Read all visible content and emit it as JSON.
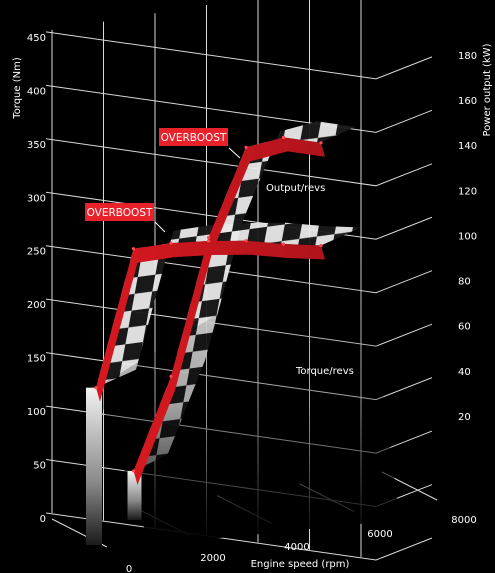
{
  "chart_data": {
    "type": "line",
    "left_axis": {
      "label": "Torque (Nm)",
      "ticks": [
        0,
        50,
        100,
        150,
        200,
        250,
        300,
        350,
        400,
        450
      ],
      "range": [
        0,
        450
      ]
    },
    "right_axis": {
      "label": "Power output (kW)",
      "ticks": [
        20,
        40,
        60,
        80,
        100,
        120,
        140,
        160,
        180
      ],
      "range": [
        0,
        180
      ]
    },
    "x_axis": {
      "label": "Engine speed (rpm)",
      "ticks": [
        "0",
        "2000",
        "4000",
        "6000",
        "8000"
      ],
      "range": [
        0,
        8000
      ]
    },
    "series": [
      {
        "name": "Torque/revs",
        "x": [
          0,
          1000,
          2000,
          3000,
          4000,
          5000,
          6000
        ],
        "y": [
          150,
          300,
          300,
          296,
          290,
          280,
          272
        ]
      },
      {
        "name": "Output/revs",
        "x": [
          1000,
          2000,
          3000,
          4000,
          5000,
          6000
        ],
        "y": [
          20,
          60,
          120,
          158,
          160,
          155
        ]
      }
    ],
    "annotations": [
      "OVERBOOST",
      "OVERBOOST"
    ],
    "grid": true,
    "accent_color": "#e8212b"
  }
}
